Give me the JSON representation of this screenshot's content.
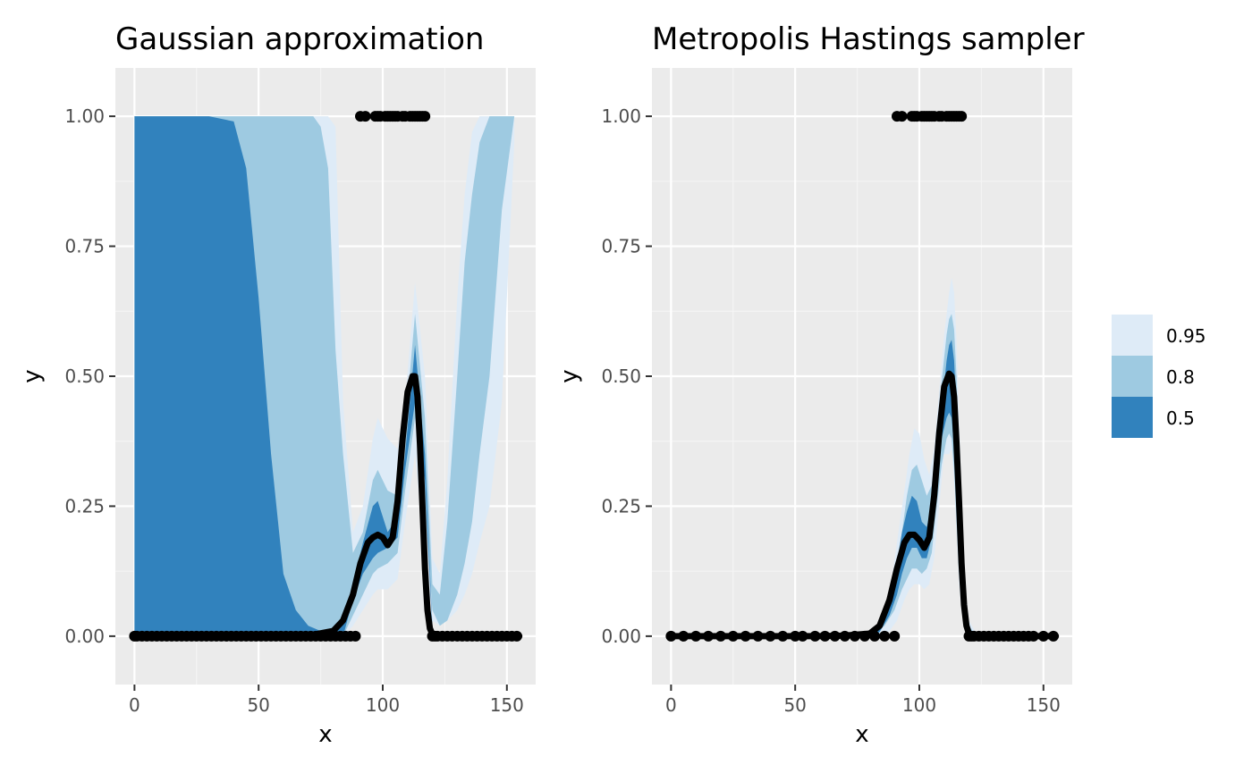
{
  "chart_data": [
    {
      "type": "area",
      "title": "Gaussian approximation",
      "xlabel": "x",
      "ylabel": "y",
      "xlim": [
        -7.7,
        161.6
      ],
      "ylim": [
        -0.093,
        1.093
      ],
      "x_ticks": [
        0,
        50,
        100,
        150
      ],
      "x_tick_labels": [
        "0",
        "50",
        "100",
        "150"
      ],
      "y_ticks": [
        0,
        0.25,
        0.5,
        0.75,
        1
      ],
      "y_tick_labels": [
        "0.00",
        "0.25",
        "0.50",
        "0.75",
        "1.00"
      ],
      "grid": true,
      "legend": "right",
      "series": [
        {
          "name": "0.95",
          "color": "#deebf7",
          "x": [
            0,
            10,
            20,
            30,
            40,
            50,
            60,
            68,
            72,
            75,
            78,
            81,
            84,
            88,
            92,
            96,
            98,
            102,
            106,
            109,
            113,
            117,
            120,
            123,
            126,
            130,
            133,
            136,
            139,
            143,
            148,
            153
          ],
          "lower": [
            0,
            0,
            0,
            0,
            0,
            0,
            0,
            0,
            0,
            0,
            0,
            0,
            0,
            0.02,
            0.05,
            0.08,
            0.09,
            0.09,
            0.11,
            0.22,
            0.35,
            0.15,
            0.03,
            0.02,
            0.03,
            0.05,
            0.08,
            0.12,
            0.18,
            0.25,
            0.45,
            0.95
          ],
          "upper": [
            1,
            1,
            1,
            1,
            1,
            1,
            1,
            1,
            1,
            1,
            1,
            0.98,
            0.45,
            0.2,
            0.25,
            0.38,
            0.42,
            0.38,
            0.36,
            0.45,
            0.68,
            0.5,
            0.15,
            0.12,
            0.3,
            0.65,
            0.85,
            0.97,
            1,
            1,
            1,
            1
          ]
        },
        {
          "name": "0.8",
          "color": "#9ecae1",
          "x": [
            0,
            10,
            20,
            30,
            40,
            50,
            60,
            68,
            72,
            75,
            78,
            81,
            84,
            88,
            92,
            96,
            98,
            102,
            106,
            109,
            113,
            117,
            120,
            123,
            126,
            130,
            133,
            136,
            139,
            143,
            148,
            153
          ],
          "lower": [
            0,
            0,
            0,
            0,
            0,
            0,
            0,
            0,
            0,
            0,
            0,
            0,
            0,
            0.04,
            0.08,
            0.12,
            0.13,
            0.14,
            0.16,
            0.28,
            0.42,
            0.25,
            0.05,
            0.02,
            0.03,
            0.08,
            0.14,
            0.22,
            0.35,
            0.5,
            0.82,
            1
          ],
          "upper": [
            1,
            1,
            1,
            1,
            1,
            1,
            1,
            1,
            1,
            0.98,
            0.9,
            0.55,
            0.35,
            0.16,
            0.2,
            0.3,
            0.32,
            0.28,
            0.27,
            0.4,
            0.62,
            0.42,
            0.1,
            0.08,
            0.22,
            0.5,
            0.72,
            0.85,
            0.95,
            1,
            1,
            1
          ]
        },
        {
          "name": "0.5",
          "color": "#3182bd",
          "x": [
            0,
            10,
            20,
            30,
            40,
            45,
            50,
            55,
            60,
            65,
            70,
            75,
            80,
            84,
            88,
            92,
            96,
            98,
            102,
            106,
            109,
            113,
            117,
            120
          ],
          "lower": [
            0,
            0,
            0,
            0,
            0,
            0,
            0,
            0,
            0,
            0,
            0,
            0,
            0,
            0,
            0.07,
            0.12,
            0.15,
            0.16,
            0.17,
            0.19,
            0.32,
            0.45,
            0.3,
            0.01
          ],
          "upper": [
            1,
            1,
            1,
            1,
            0.99,
            0.9,
            0.65,
            0.35,
            0.12,
            0.05,
            0.02,
            0.01,
            0.01,
            0.03,
            0.1,
            0.18,
            0.25,
            0.26,
            0.2,
            0.23,
            0.35,
            0.56,
            0.35,
            0.02
          ]
        }
      ],
      "mean_line": {
        "x": [
          0,
          60,
          70,
          80,
          84,
          88,
          91,
          94,
          96,
          98,
          100,
          102,
          104,
          106,
          108,
          110,
          112,
          113,
          114,
          115,
          116,
          117,
          118,
          119,
          120,
          122,
          125,
          155
        ],
        "y": [
          0,
          0,
          0.001,
          0.01,
          0.03,
          0.08,
          0.14,
          0.18,
          0.19,
          0.195,
          0.19,
          0.175,
          0.19,
          0.26,
          0.38,
          0.47,
          0.5,
          0.5,
          0.46,
          0.37,
          0.25,
          0.13,
          0.05,
          0.015,
          0.004,
          0,
          0,
          0
        ]
      },
      "points_top": [
        91,
        93,
        97,
        98,
        99,
        101,
        102,
        103,
        104,
        105,
        106,
        108,
        109,
        111,
        112,
        113,
        114,
        115,
        116,
        117
      ],
      "points_bottom": [
        0,
        1,
        3,
        5,
        7,
        9,
        11,
        13,
        15,
        17,
        19,
        21,
        23,
        25,
        27,
        29,
        31,
        33,
        35,
        37,
        39,
        41,
        43,
        45,
        47,
        49,
        51,
        53,
        55,
        57,
        59,
        61,
        63,
        65,
        67,
        69,
        71,
        73,
        75,
        77,
        79,
        81,
        83,
        85,
        87,
        89,
        120,
        121,
        122,
        124,
        126,
        128,
        130,
        132,
        134,
        136,
        138,
        140,
        142,
        144,
        146,
        148,
        150,
        152,
        154
      ]
    },
    {
      "type": "area",
      "title": "Metropolis Hastings sampler",
      "xlabel": "x",
      "ylabel": "y",
      "xlim": [
        -7.7,
        161.6
      ],
      "ylim": [
        -0.093,
        1.093
      ],
      "x_ticks": [
        0,
        50,
        100,
        150
      ],
      "x_tick_labels": [
        "0",
        "50",
        "100",
        "150"
      ],
      "y_ticks": [
        0,
        0.25,
        0.5,
        0.75,
        1
      ],
      "y_tick_labels": [
        "0.00",
        "0.25",
        "0.50",
        "0.75",
        "1.00"
      ],
      "grid": true,
      "legend": "right",
      "series": [
        {
          "name": "0.95",
          "color": "#deebf7",
          "x": [
            76,
            80,
            84,
            88,
            91,
            94,
            96,
            98,
            100,
            102,
            104,
            106,
            108,
            110,
            112,
            113,
            114,
            115,
            116,
            117,
            118,
            119,
            120,
            123,
            127
          ],
          "lower": [
            0,
            0,
            0,
            0.01,
            0.03,
            0.07,
            0.09,
            0.1,
            0.1,
            0.09,
            0.1,
            0.15,
            0.25,
            0.35,
            0.35,
            0.36,
            0.3,
            0.2,
            0.1,
            0.05,
            0.02,
            0.01,
            0,
            0,
            0
          ],
          "upper": [
            0,
            0.005,
            0.02,
            0.08,
            0.18,
            0.28,
            0.35,
            0.4,
            0.39,
            0.34,
            0.31,
            0.36,
            0.47,
            0.58,
            0.66,
            0.69,
            0.66,
            0.57,
            0.42,
            0.28,
            0.15,
            0.07,
            0.03,
            0.005,
            0
          ]
        },
        {
          "name": "0.8",
          "color": "#9ecae1",
          "x": [
            78,
            82,
            86,
            90,
            93,
            95,
            97,
            99,
            101,
            103,
            105,
            107,
            109,
            111,
            112,
            113,
            114,
            115,
            116,
            117,
            118,
            120,
            123
          ],
          "lower": [
            0,
            0.005,
            0.02,
            0.05,
            0.09,
            0.11,
            0.13,
            0.13,
            0.12,
            0.13,
            0.16,
            0.25,
            0.33,
            0.38,
            0.39,
            0.38,
            0.32,
            0.22,
            0.12,
            0.06,
            0.02,
            0.003,
            0
          ],
          "upper": [
            0,
            0.008,
            0.04,
            0.12,
            0.2,
            0.27,
            0.32,
            0.33,
            0.3,
            0.27,
            0.29,
            0.38,
            0.49,
            0.58,
            0.61,
            0.62,
            0.59,
            0.5,
            0.36,
            0.22,
            0.11,
            0.02,
            0
          ]
        },
        {
          "name": "0.5",
          "color": "#3182bd",
          "x": [
            80,
            84,
            88,
            91,
            93,
            95,
            97,
            99,
            101,
            103,
            105,
            107,
            109,
            111,
            112,
            113,
            114,
            115,
            116,
            117,
            118,
            120,
            122
          ],
          "lower": [
            0,
            0.008,
            0.04,
            0.08,
            0.12,
            0.15,
            0.17,
            0.17,
            0.15,
            0.15,
            0.19,
            0.29,
            0.38,
            0.42,
            0.43,
            0.42,
            0.36,
            0.26,
            0.15,
            0.07,
            0.02,
            0.003,
            0
          ],
          "upper": [
            0,
            0.015,
            0.07,
            0.14,
            0.2,
            0.24,
            0.27,
            0.26,
            0.22,
            0.21,
            0.25,
            0.34,
            0.44,
            0.53,
            0.56,
            0.57,
            0.53,
            0.43,
            0.3,
            0.17,
            0.08,
            0.01,
            0
          ]
        }
      ],
      "mean_line": {
        "x": [
          0,
          60,
          70,
          80,
          84,
          88,
          91,
          94,
          96,
          98,
          100,
          102,
          104,
          106,
          108,
          110,
          112,
          113,
          114,
          115,
          116,
          117,
          118,
          119,
          120,
          122,
          125,
          155
        ],
        "y": [
          0,
          0,
          0.001,
          0.005,
          0.02,
          0.07,
          0.13,
          0.18,
          0.195,
          0.195,
          0.185,
          0.17,
          0.19,
          0.27,
          0.39,
          0.48,
          0.505,
          0.5,
          0.46,
          0.37,
          0.26,
          0.14,
          0.06,
          0.02,
          0.005,
          0,
          0,
          0
        ]
      },
      "points_top": [
        91,
        93,
        97,
        98,
        99,
        101,
        102,
        103,
        104,
        105,
        106,
        108,
        109,
        111,
        112,
        113,
        114,
        115,
        116,
        117
      ],
      "points_bottom": [
        0,
        5,
        10,
        15,
        20,
        25,
        30,
        35,
        40,
        45,
        50,
        53,
        58,
        62,
        66,
        70,
        74,
        78,
        82,
        86,
        90,
        120,
        121,
        122,
        124,
        126,
        128,
        130,
        132,
        134,
        136,
        138,
        140,
        142,
        144,
        146,
        150,
        154
      ]
    }
  ],
  "legend": {
    "items": [
      {
        "label": "0.95",
        "color": "#deebf7"
      },
      {
        "label": "0.8",
        "color": "#9ecae1"
      },
      {
        "label": "0.5",
        "color": "#3182bd"
      }
    ]
  },
  "colors": {
    "panel_background": "#ebebeb",
    "grid_major": "#ffffff",
    "grid_minor": "#f5f5f5",
    "line": "#000000"
  }
}
